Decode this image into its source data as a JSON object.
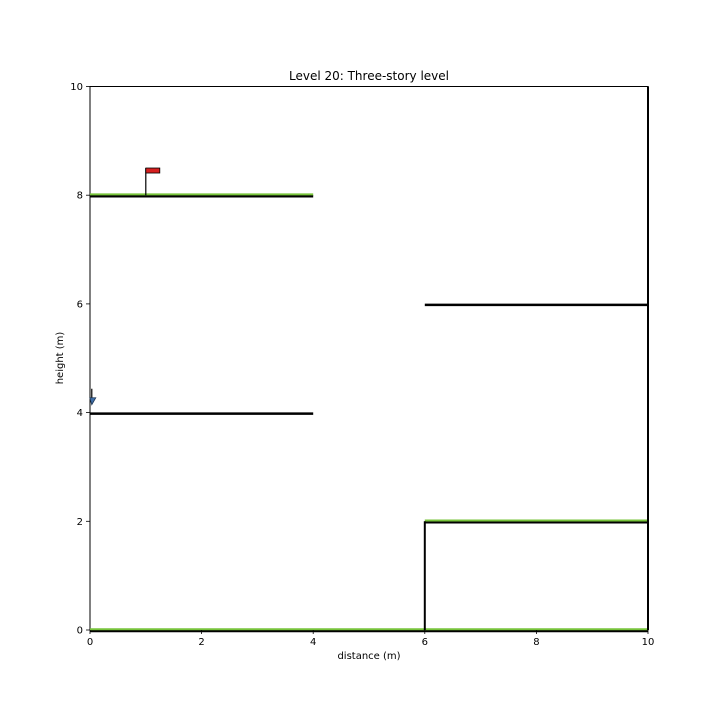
{
  "title": "Level 20: Three-story level",
  "xlabel": "distance (m)",
  "ylabel": "height (m)",
  "colors": {
    "ground": "#000000",
    "grass": "#77c33a",
    "flag": "#d62020",
    "pole": "#000000",
    "player": "#3f6fa8"
  },
  "chart_data": {
    "type": "game-level",
    "xlim": [
      0,
      10
    ],
    "ylim": [
      0,
      10
    ],
    "xticks": [
      0,
      2,
      4,
      6,
      8,
      10
    ],
    "yticks": [
      0,
      2,
      4,
      6,
      8,
      10
    ],
    "xtick_labels": [
      "0",
      "2",
      "4",
      "6",
      "8",
      "10"
    ],
    "ytick_labels": [
      "0",
      "2",
      "4",
      "6",
      "8",
      "10"
    ],
    "platforms": [
      {
        "name": "ground-floor",
        "x": [
          0,
          10
        ],
        "y": 0,
        "grass": true
      },
      {
        "name": "left-middle-platform",
        "x": [
          0,
          4
        ],
        "y": 4,
        "grass": false
      },
      {
        "name": "left-top-platform",
        "x": [
          0,
          4
        ],
        "y": 8,
        "grass": true
      },
      {
        "name": "right-step-platform",
        "x": [
          6,
          10
        ],
        "y": 2,
        "grass": true
      },
      {
        "name": "right-upper-platform",
        "x": [
          6,
          10
        ],
        "y": 6,
        "grass": false
      }
    ],
    "walls": [
      {
        "name": "right-step-wall",
        "x": 6,
        "y": [
          0,
          2
        ]
      },
      {
        "name": "right-boundary-wall",
        "x": 10,
        "y": [
          0,
          10
        ]
      }
    ],
    "goal_flag": {
      "x": 1,
      "y": 8,
      "height": 0.5
    },
    "player": {
      "x": 0.05,
      "y": 4.2
    }
  }
}
